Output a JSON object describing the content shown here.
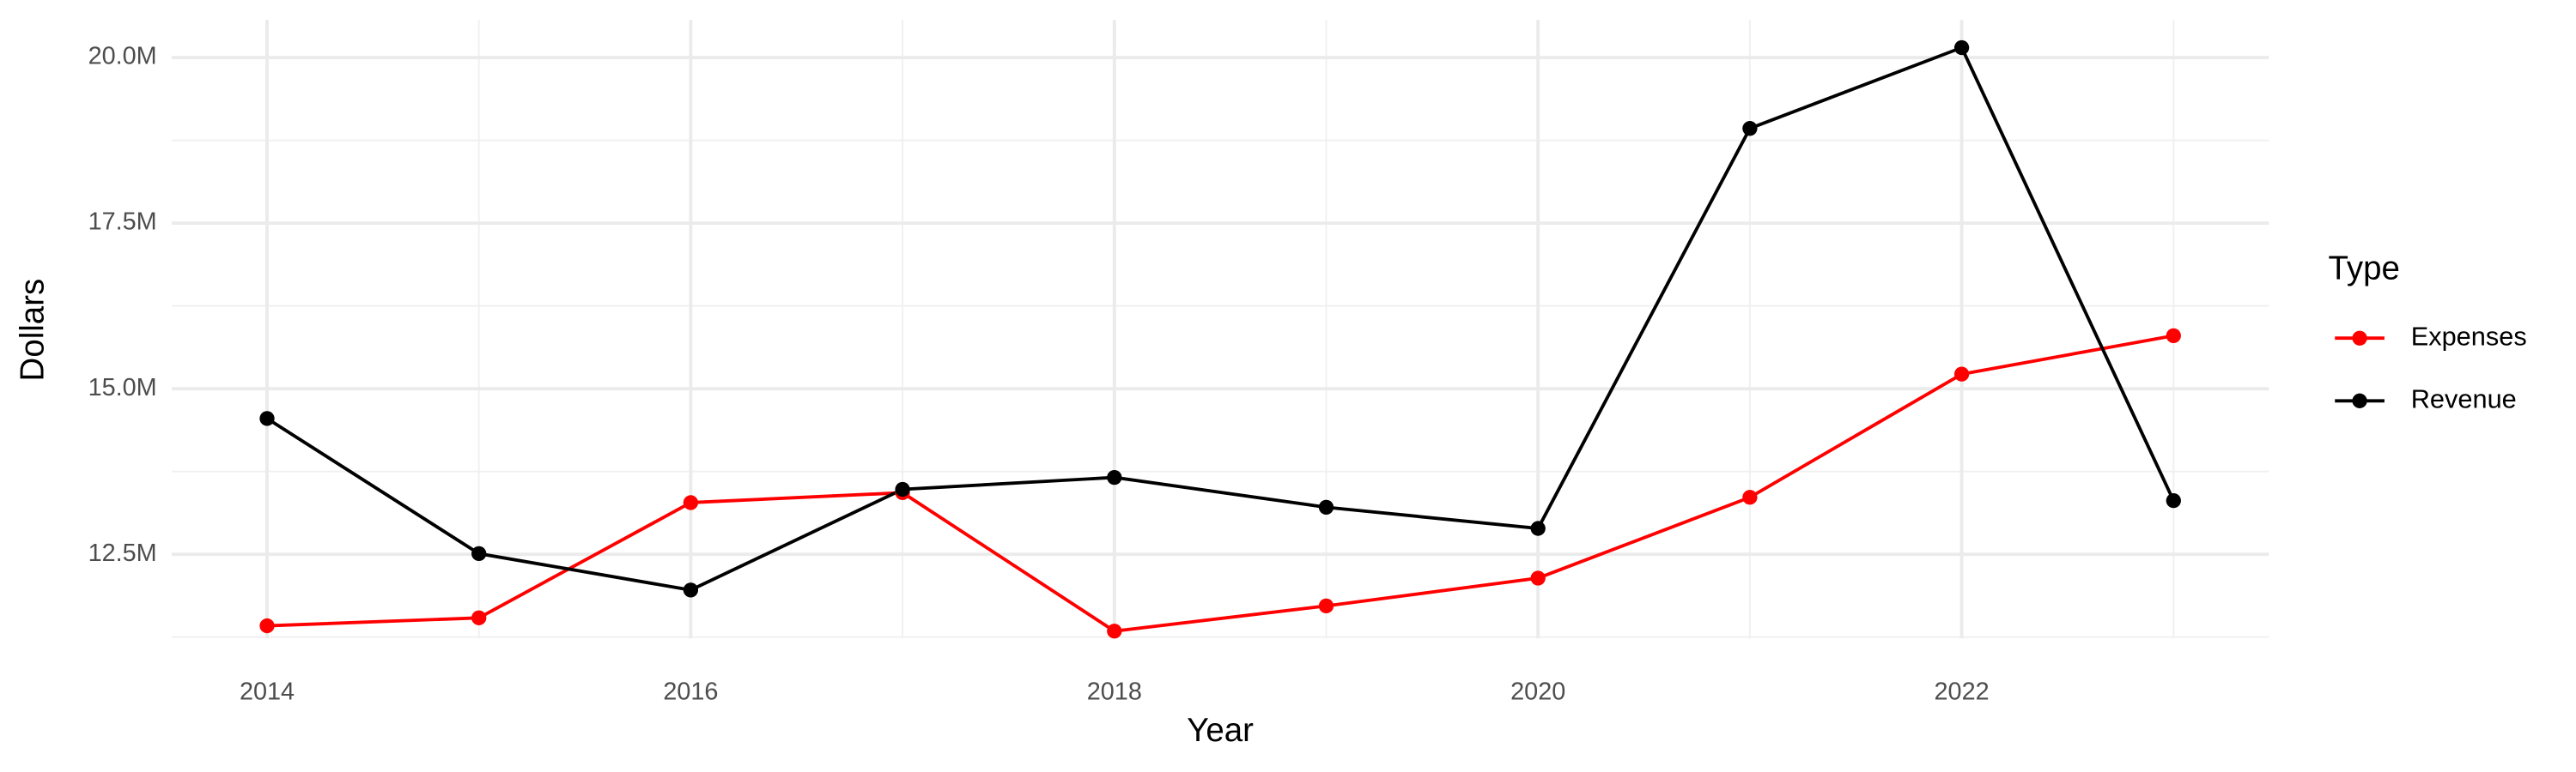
{
  "chart_data": {
    "type": "line",
    "x_label": "Year",
    "y_label": "Dollars",
    "legend_title": "Type",
    "legend_position": "right",
    "grid": true,
    "x": [
      2014,
      2015,
      2016,
      2017,
      2018,
      2019,
      2020,
      2021,
      2022,
      2023
    ],
    "series": [
      {
        "name": "Expenses",
        "color": "#ff0000",
        "values": [
          11420000,
          11540000,
          13280000,
          13430000,
          11340000,
          11720000,
          12140000,
          13360000,
          15220000,
          15800000
        ]
      },
      {
        "name": "Revenue",
        "color": "#000000",
        "values": [
          14550000,
          12510000,
          11960000,
          13480000,
          13660000,
          13210000,
          12890000,
          18930000,
          20150000,
          13310000
        ]
      }
    ],
    "xlim": [
      2013.55,
      2023.45
    ],
    "ylim": [
      11230000,
      20570000
    ],
    "xticks": [
      2014,
      2016,
      2018,
      2020,
      2022
    ],
    "yticks": [
      {
        "value": 12500000,
        "label": "12.5M"
      },
      {
        "value": 15000000,
        "label": "15.0M"
      },
      {
        "value": 17500000,
        "label": "17.5M"
      },
      {
        "value": 20000000,
        "label": "20.0M"
      }
    ]
  }
}
